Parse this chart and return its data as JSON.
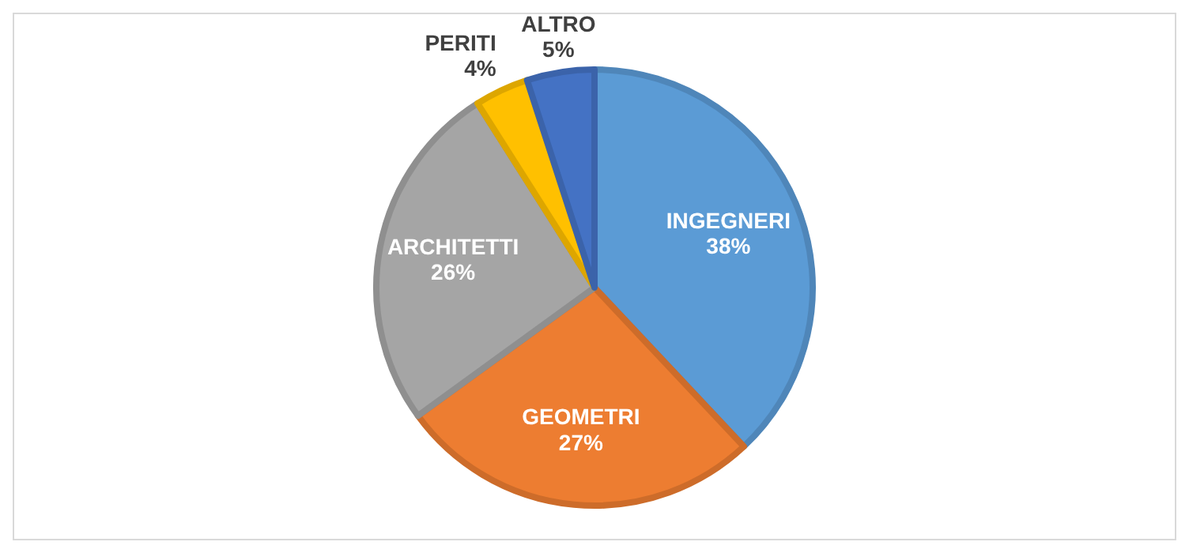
{
  "chart_data": {
    "type": "pie",
    "categories": [
      "INGEGNERI",
      "GEOMETRI",
      "ARCHITETTI",
      "PERITI",
      "ALTRO"
    ],
    "values": [
      38,
      27,
      26,
      4,
      5
    ],
    "colors": [
      "#5b9bd5",
      "#ed7d31",
      "#a5a5a5",
      "#ffc000",
      "#4472c4"
    ],
    "value_labels": [
      "38%",
      "27%",
      "26%",
      "4%",
      "5%"
    ]
  }
}
